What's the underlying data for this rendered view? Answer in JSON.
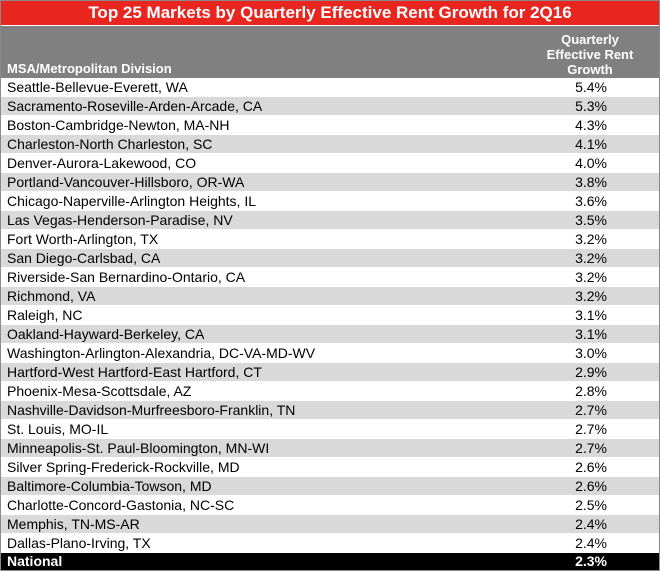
{
  "title": "Top 25 Markets by Quarterly Effective Rent Growth for 2Q16",
  "headers": {
    "msa": "MSA/Metropolitan Division",
    "growth_line1": "Quarterly",
    "growth_line2": "Effective Rent",
    "growth_line3": "Growth"
  },
  "rows": [
    {
      "msa": "Seattle-Bellevue-Everett, WA",
      "growth": "5.4%"
    },
    {
      "msa": "Sacramento-Roseville-Arden-Arcade, CA",
      "growth": "5.3%"
    },
    {
      "msa": "Boston-Cambridge-Newton, MA-NH",
      "growth": "4.3%"
    },
    {
      "msa": "Charleston-North Charleston, SC",
      "growth": "4.1%"
    },
    {
      "msa": "Denver-Aurora-Lakewood, CO",
      "growth": "4.0%"
    },
    {
      "msa": "Portland-Vancouver-Hillsboro, OR-WA",
      "growth": "3.8%"
    },
    {
      "msa": "Chicago-Naperville-Arlington Heights, IL",
      "growth": "3.6%"
    },
    {
      "msa": "Las Vegas-Henderson-Paradise, NV",
      "growth": "3.5%"
    },
    {
      "msa": "Fort Worth-Arlington, TX",
      "growth": "3.2%"
    },
    {
      "msa": "San Diego-Carlsbad, CA",
      "growth": "3.2%"
    },
    {
      "msa": "Riverside-San Bernardino-Ontario, CA",
      "growth": "3.2%"
    },
    {
      "msa": "Richmond, VA",
      "growth": "3.2%"
    },
    {
      "msa": "Raleigh, NC",
      "growth": "3.1%"
    },
    {
      "msa": "Oakland-Hayward-Berkeley, CA",
      "growth": "3.1%"
    },
    {
      "msa": "Washington-Arlington-Alexandria, DC-VA-MD-WV",
      "growth": "3.0%"
    },
    {
      "msa": "Hartford-West Hartford-East Hartford, CT",
      "growth": "2.9%"
    },
    {
      "msa": "Phoenix-Mesa-Scottsdale, AZ",
      "growth": "2.8%"
    },
    {
      "msa": "Nashville-Davidson-Murfreesboro-Franklin, TN",
      "growth": "2.7%"
    },
    {
      "msa": "St. Louis, MO-IL",
      "growth": "2.7%"
    },
    {
      "msa": "Minneapolis-St. Paul-Bloomington, MN-WI",
      "growth": "2.7%"
    },
    {
      "msa": "Silver Spring-Frederick-Rockville, MD",
      "growth": "2.6%"
    },
    {
      "msa": "Baltimore-Columbia-Towson, MD",
      "growth": "2.6%"
    },
    {
      "msa": "Charlotte-Concord-Gastonia, NC-SC",
      "growth": "2.5%"
    },
    {
      "msa": "Memphis, TN-MS-AR",
      "growth": "2.4%"
    },
    {
      "msa": "Dallas-Plano-Irving, TX",
      "growth": "2.4%"
    }
  ],
  "national": {
    "msa": "National",
    "growth": "2.3%"
  },
  "colors": {
    "title_bg": "#e8251f",
    "header_bg": "#808080",
    "stripe": "#d9d9d9",
    "national_bg": "#000000"
  }
}
